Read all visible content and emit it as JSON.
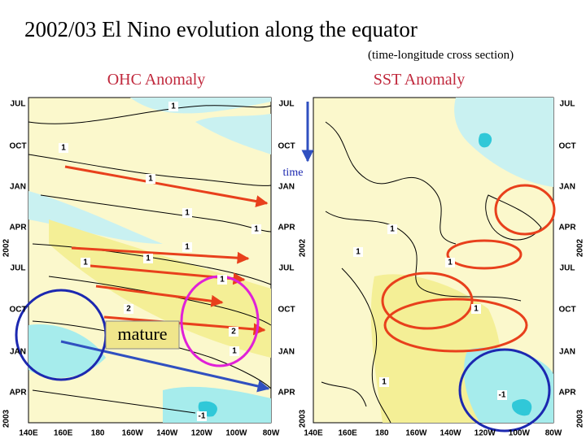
{
  "title": "2002/03 El Nino evolution along the equator",
  "subtitle": "(time-longitude cross section)",
  "panels": [
    {
      "title": "OHC Anomaly",
      "contour_labels": [
        "1",
        "1",
        "1",
        "1",
        "1",
        "1",
        "1",
        "1",
        "1",
        "2",
        "2",
        "1",
        "-1"
      ]
    },
    {
      "title": "SST Anomaly",
      "contour_labels": [
        "1",
        "1",
        "1",
        "1",
        "1",
        "-1"
      ]
    }
  ],
  "time_labels": [
    "JUL",
    "OCT",
    "JAN",
    "APR",
    "JUL",
    "OCT",
    "JAN",
    "APR"
  ],
  "year_labels": [
    "2002",
    "2003"
  ],
  "longitude_labels": [
    "140E",
    "160E",
    "180",
    "160W",
    "140W",
    "120W",
    "100W",
    "80W"
  ],
  "annotations": {
    "time": "time",
    "mature": "mature"
  }
}
